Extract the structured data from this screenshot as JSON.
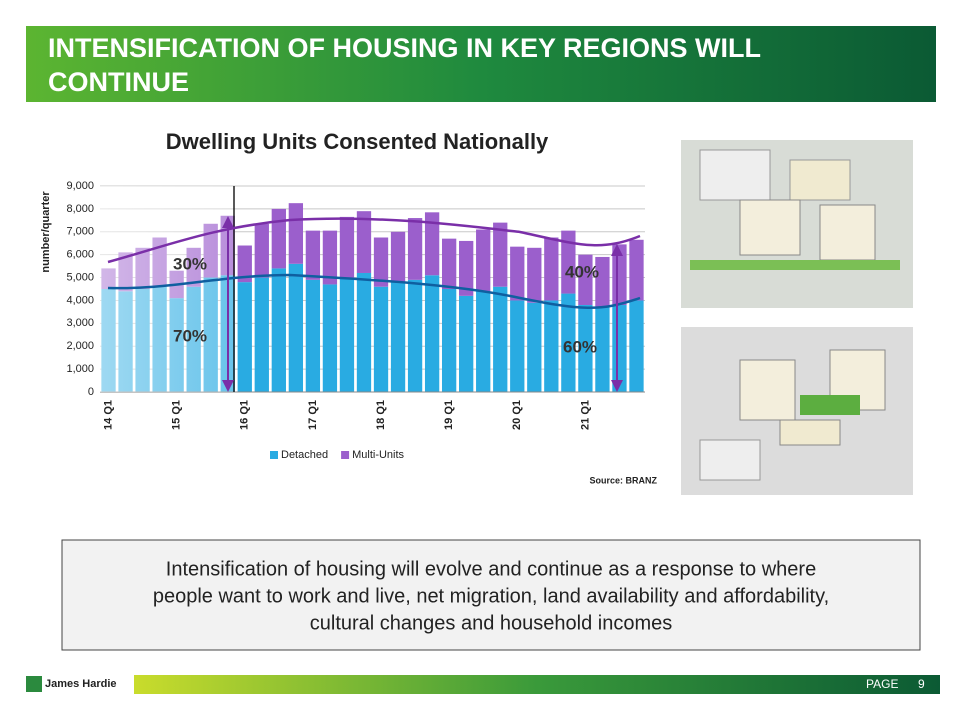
{
  "header": {
    "title_line1": "INTENSIFICATION OF HOUSING IN KEY REGIONS WILL",
    "title_line2": "CONTINUE"
  },
  "chart_data": {
    "type": "bar",
    "stacked": true,
    "title": "Dwelling Units Consented Nationally",
    "y_label": "number/quarter",
    "categories": [
      "14 Q1",
      null,
      null,
      null,
      "15 Q1",
      null,
      null,
      null,
      "16 Q1",
      null,
      null,
      null,
      "17 Q1",
      null,
      null,
      null,
      "18 Q1",
      null,
      null,
      null,
      "19 Q1",
      null,
      null,
      null,
      "20 Q1",
      null,
      null,
      null,
      "21 Q1",
      null,
      null,
      null
    ],
    "series": [
      {
        "name": "Detached",
        "color": "#29abe2",
        "values": [
          4500,
          4400,
          4500,
          4600,
          4100,
          4600,
          5000,
          5100,
          4800,
          5000,
          5400,
          5600,
          4900,
          4700,
          5000,
          5200,
          4600,
          4800,
          4900,
          5100,
          4500,
          4200,
          4400,
          4600,
          4000,
          3900,
          4000,
          4300,
          3800,
          3700,
          3800,
          4000
        ]
      },
      {
        "name": "Multi-Units",
        "color": "#9b5fcc",
        "values": [
          900,
          1700,
          1800,
          2150,
          1200,
          1700,
          2350,
          2600,
          1600,
          2350,
          2600,
          2650,
          2150,
          2350,
          2650,
          2700,
          2150,
          2200,
          2700,
          2750,
          2200,
          2400,
          2700,
          2800,
          2350,
          2400,
          2750,
          2750,
          2200,
          2200,
          2650,
          2650
        ]
      }
    ],
    "ylim": [
      0,
      9000
    ],
    "yticks": [
      0,
      {
        "value": 1000,
        "label": "1,000"
      },
      {
        "value": 2000,
        "label": "2,000"
      },
      {
        "value": 3000,
        "label": "3,000"
      },
      {
        "value": 4000,
        "label": "4,000"
      },
      {
        "value": 5000,
        "label": "5,000"
      },
      {
        "value": 6000,
        "label": "6,000"
      },
      {
        "value": 7000,
        "label": "7,000"
      },
      {
        "value": 8000,
        "label": "8,000"
      },
      {
        "value": 9000,
        "label": "9,000"
      }
    ],
    "grid": true,
    "annotations": [
      "30%",
      "70%",
      "40%",
      "60%"
    ],
    "source": "Source: BRANZ"
  },
  "body_text": {
    "lines": [
      "Intensification of housing will evolve and continue as a response to where",
      "people want to work and live, net migration, land availability and affordability,",
      "cultural changes and household incomes"
    ]
  },
  "footer": {
    "brand": "James Hardie",
    "page_label": "PAGE",
    "page_number": "9"
  }
}
